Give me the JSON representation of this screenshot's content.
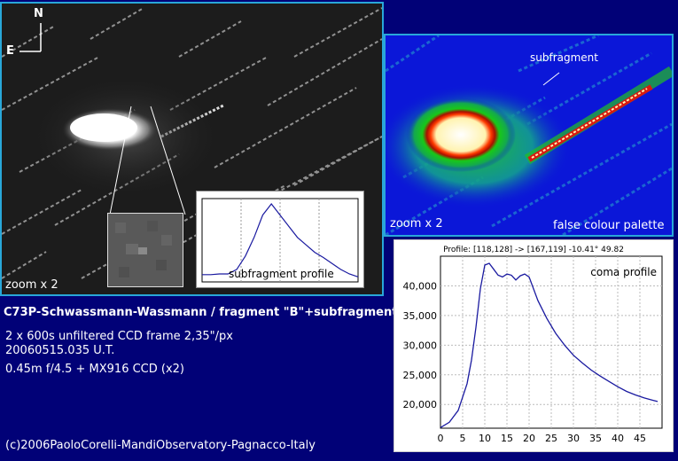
{
  "main_image": {
    "compass_north": "N",
    "compass_east": "E",
    "zoom_label": "zoom x 2"
  },
  "subfragment_profile": {
    "label": "subfragment profile",
    "values": [
      0.05,
      0.05,
      0.06,
      0.06,
      0.12,
      0.3,
      0.55,
      0.85,
      1.0,
      0.85,
      0.7,
      0.55,
      0.45,
      0.35,
      0.28,
      0.2,
      0.12,
      0.06,
      0.02
    ]
  },
  "false_colour": {
    "subfragment_label": "subfragment",
    "zoom_label": "zoom x 2",
    "palette_label": "false colour palette"
  },
  "text": {
    "title": "C73P-Schwassmann-Wassmann / fragment \"B\"+subfragment",
    "line1": "2 x 600s unfiltered CCD frame   2,35\"/px",
    "line2": "20060515.035 U.T.",
    "line3": "0.45m f/4.5 + MX916 CCD (x2)",
    "copyright": "(c)2006PaoloCorelli-MandiObservatory-Pagnacco-Italy"
  },
  "chart_data": {
    "type": "line",
    "title": "Profile: [118,128] -> [167,119] -10.41°  49.82",
    "legend": "coma profile",
    "xlim": [
      0,
      50
    ],
    "ylim": [
      16000,
      45000
    ],
    "xticks": [
      0,
      5,
      10,
      15,
      20,
      25,
      30,
      35,
      40,
      45
    ],
    "yticks": [
      20000,
      25000,
      30000,
      35000,
      40000
    ],
    "ytick_labels": [
      "20,000",
      "25,000",
      "30,000",
      "35,000",
      "40,000"
    ],
    "grid": true,
    "x": [
      0,
      2,
      4,
      6,
      7,
      8,
      9,
      10,
      11,
      12,
      13,
      14,
      15,
      16,
      17,
      18,
      19,
      20,
      22,
      24,
      26,
      28,
      30,
      32,
      34,
      36,
      38,
      40,
      42,
      44,
      46,
      48,
      49
    ],
    "y": [
      16100,
      17000,
      19000,
      23500,
      27500,
      33000,
      39500,
      43500,
      43800,
      42800,
      41800,
      41500,
      42000,
      41800,
      41000,
      41700,
      42000,
      41500,
      37500,
      34500,
      32000,
      30000,
      28300,
      27000,
      25800,
      24800,
      23900,
      23000,
      22200,
      21600,
      21100,
      20700,
      20500
    ]
  }
}
